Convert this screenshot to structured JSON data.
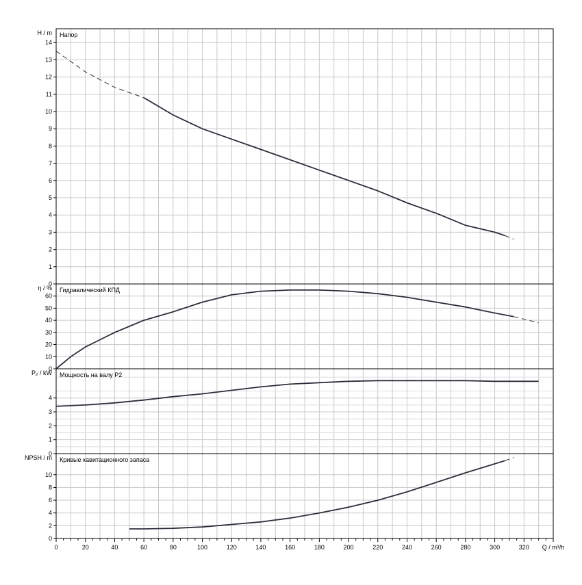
{
  "chart_data": {
    "type": "line",
    "x_axis": {
      "label": "Q / m³/h",
      "ticks": [
        "0",
        "20",
        "40",
        "60",
        "80",
        "100",
        "120",
        "140",
        "160",
        "180",
        "200",
        "220",
        "240",
        "260",
        "280",
        "300",
        "320"
      ],
      "range": [
        0,
        340
      ],
      "minor_step": 5
    },
    "grid": true,
    "panels": [
      {
        "id": "head",
        "ylabel": "H / m",
        "title": "Напор",
        "ylim": [
          0,
          14.8
        ],
        "y_ticks": [
          0,
          1,
          2,
          3,
          4,
          5,
          6,
          7,
          8,
          9,
          10,
          11,
          12,
          13,
          14
        ],
        "series": [
          {
            "style": "dashed",
            "x": [
              0,
              20,
              40,
              60
            ],
            "y": [
              13.5,
              12.3,
              11.4,
              10.8
            ]
          },
          {
            "style": "solid",
            "x": [
              60,
              80,
              100,
              120,
              140,
              160,
              180,
              200,
              220,
              240,
              260,
              280,
              300,
              307
            ],
            "y": [
              10.8,
              9.8,
              9.0,
              8.4,
              7.8,
              7.2,
              6.6,
              6.0,
              5.4,
              4.7,
              4.1,
              3.4,
              3.0,
              2.8
            ]
          },
          {
            "style": "dashed",
            "x": [
              307,
              313
            ],
            "y": [
              2.8,
              2.6
            ]
          }
        ]
      },
      {
        "id": "efficiency",
        "ylabel": "η / %",
        "title": "Гидравлический КПД",
        "ylim": [
          0,
          70
        ],
        "y_ticks": [
          0,
          10,
          20,
          30,
          40,
          50,
          60
        ],
        "series": [
          {
            "style": "solid",
            "x": [
              0,
              10,
              20,
              30,
              40,
              50,
              60,
              80,
              100,
              120,
              140,
              160,
              180,
              200,
              220,
              240,
              260,
              280,
              300,
              313
            ],
            "y": [
              0,
              10,
              18,
              24,
              30,
              35,
              40,
              47,
              55,
              61,
              64,
              65,
              65,
              64,
              62,
              59,
              55,
              51,
              46,
              43
            ]
          },
          {
            "style": "dashed",
            "x": [
              313,
              330
            ],
            "y": [
              43,
              38
            ]
          }
        ]
      },
      {
        "id": "power",
        "ylabel": "P₂ / kW",
        "title": "Мощность на валу P2",
        "ylim": [
          0,
          6.1
        ],
        "y_ticks": [
          0,
          1,
          2,
          3,
          4
        ],
        "series": [
          {
            "style": "solid",
            "x": [
              0,
              20,
              40,
              60,
              80,
              100,
              120,
              140,
              160,
              180,
              200,
              220,
              240,
              260,
              280,
              300,
              330
            ],
            "y": [
              3.4,
              3.5,
              3.65,
              3.85,
              4.1,
              4.3,
              4.55,
              4.8,
              5.0,
              5.1,
              5.2,
              5.25,
              5.25,
              5.25,
              5.25,
              5.2,
              5.2
            ]
          }
        ]
      },
      {
        "id": "npsh",
        "ylabel": "NPSH / m",
        "title": "Кривые кавитационного запаса",
        "ylim": [
          0,
          13.3
        ],
        "y_ticks": [
          0,
          2,
          4,
          6,
          8,
          10
        ],
        "series": [
          {
            "style": "solid",
            "x": [
              50,
              60,
              80,
              100,
              120,
              140,
              160,
              180,
              200,
              220,
              240,
              260,
              280,
              300,
              307
            ],
            "y": [
              1.5,
              1.5,
              1.6,
              1.8,
              2.2,
              2.6,
              3.2,
              4.0,
              4.9,
              6.0,
              7.3,
              8.8,
              10.3,
              11.7,
              12.2
            ]
          },
          {
            "style": "dashed",
            "x": [
              307,
              313
            ],
            "y": [
              12.2,
              12.7
            ]
          }
        ]
      }
    ]
  }
}
